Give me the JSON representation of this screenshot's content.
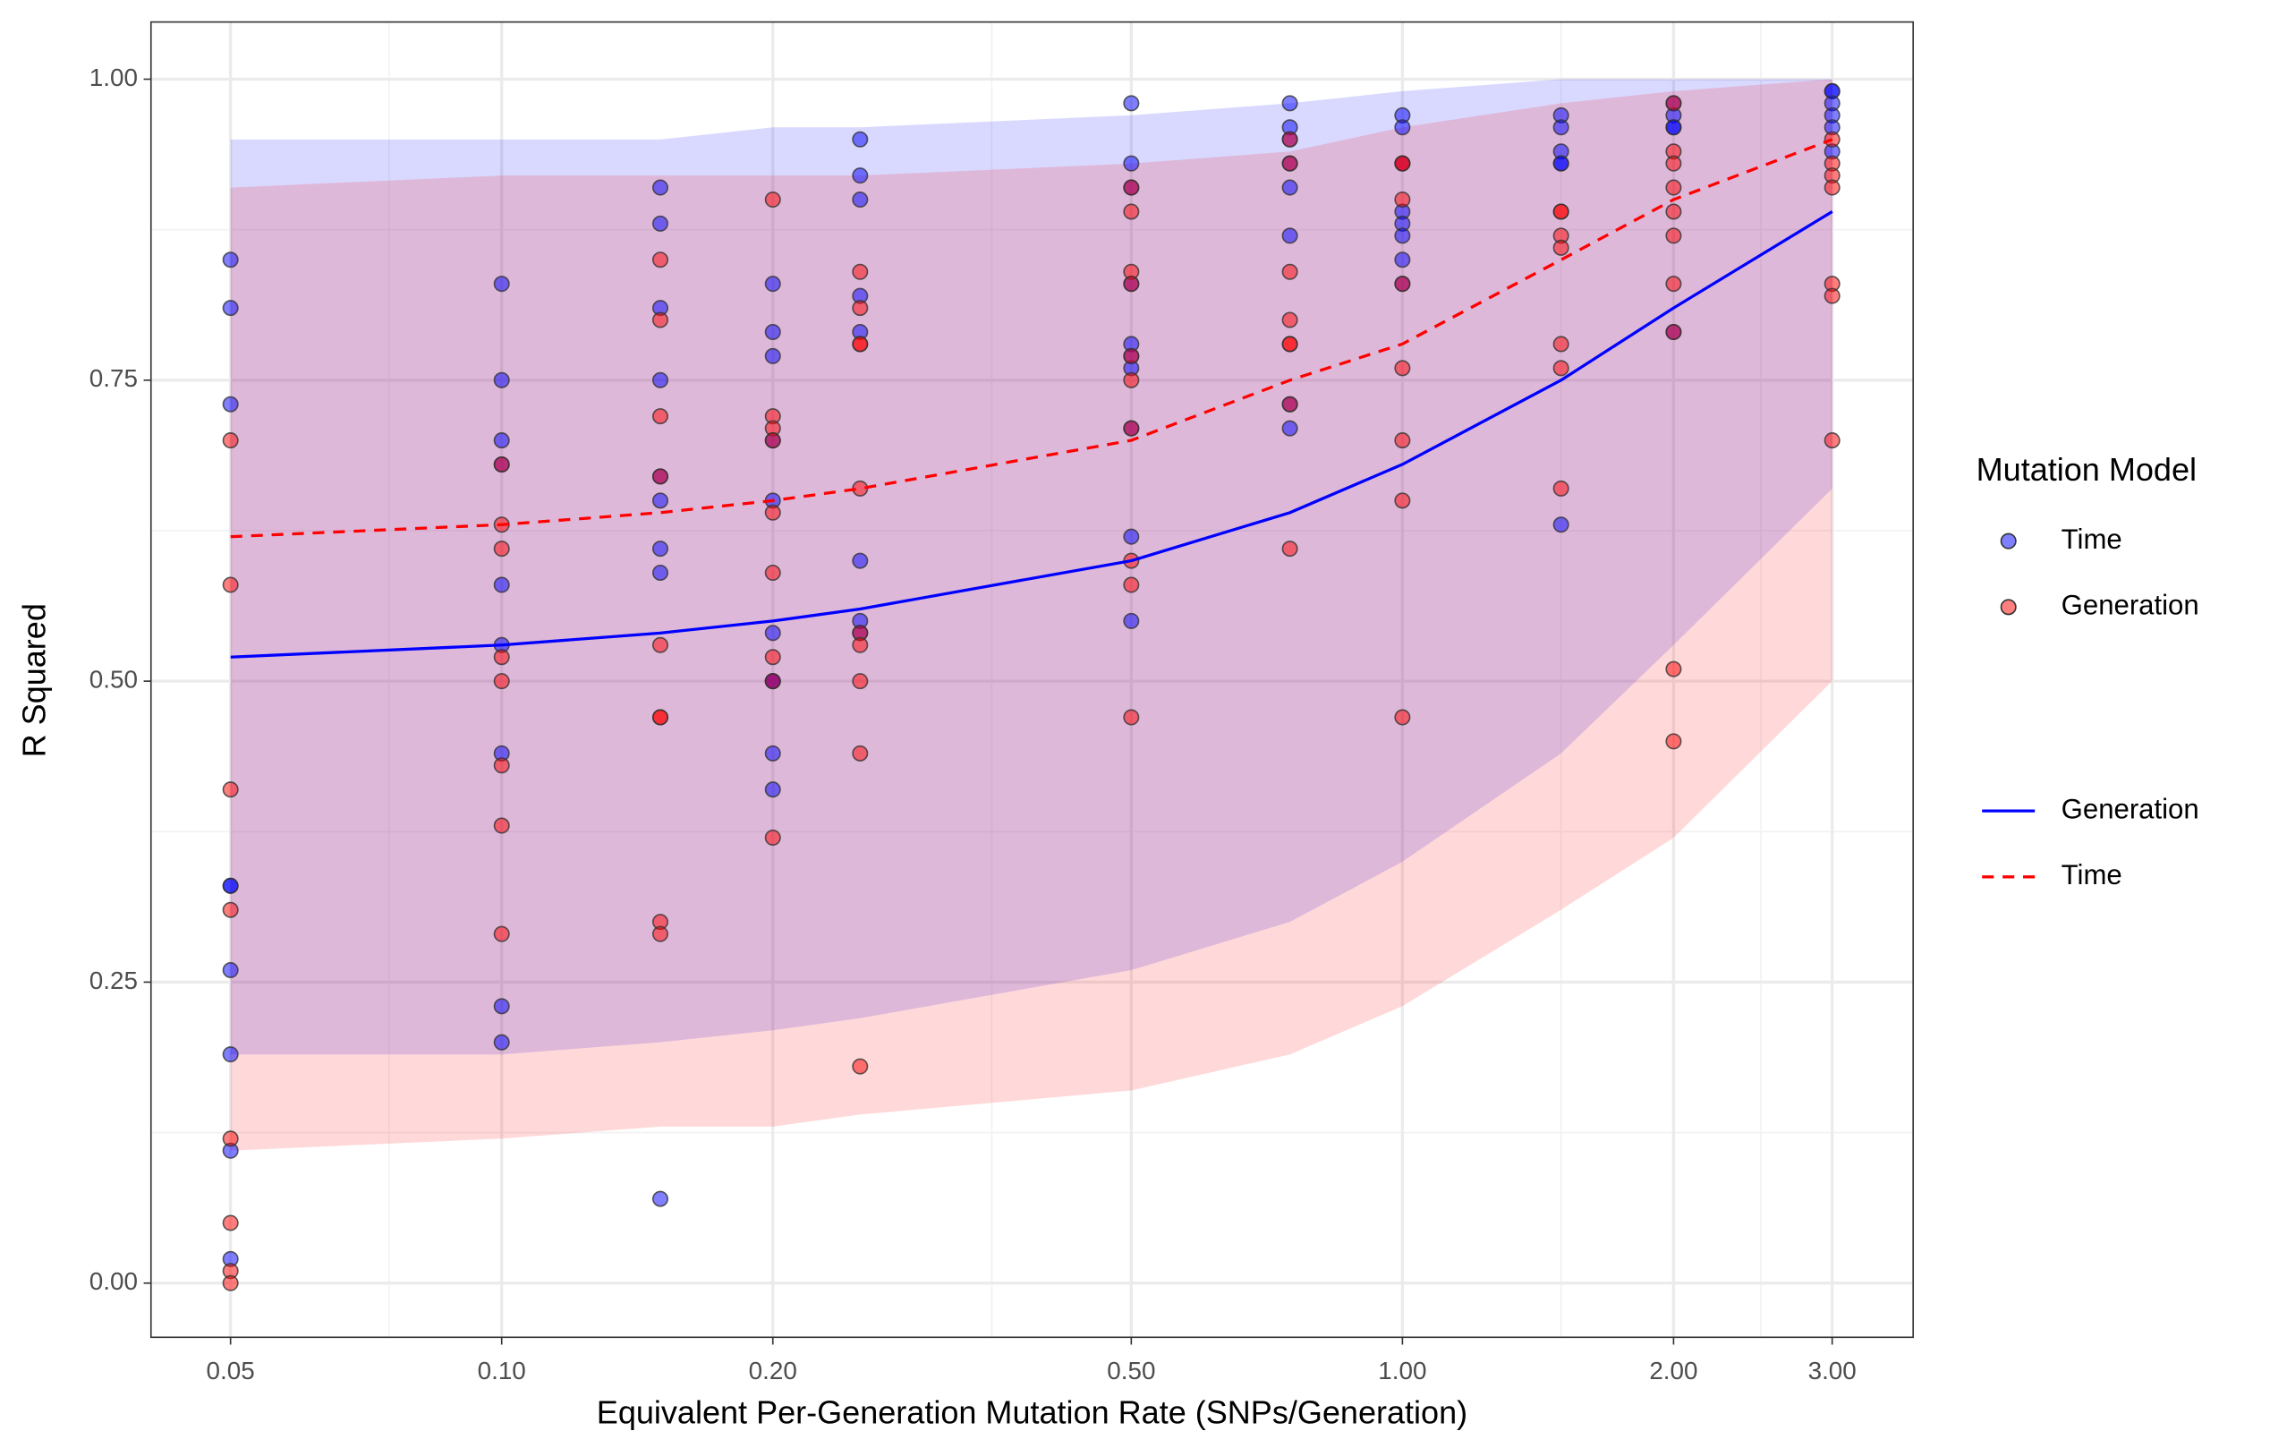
{
  "chart_data": {
    "type": "scatter",
    "x_label": "Equivalent Per-Generation Mutation Rate (SNPs/Generation)",
    "y_label": "R Squared",
    "x_log": true,
    "grid": true,
    "xlim": [
      0.0408,
      3.69
    ],
    "ylim": [
      -0.045,
      1.0475
    ],
    "xticks": [
      0.05,
      {
        "value": 0.1,
        "label": "0.10"
      },
      {
        "value": 0.2,
        "label": "0.20"
      },
      {
        "value": 0.5,
        "label": "0.50"
      },
      {
        "value": 1,
        "label": "1.00"
      },
      {
        "value": 2,
        "label": "2.00"
      },
      {
        "value": 3,
        "label": "3.00"
      }
    ],
    "yticks": [
      {
        "value": 0,
        "label": "0.00"
      },
      0.25,
      {
        "value": 0.5,
        "label": "0.50"
      },
      0.75,
      {
        "value": 1,
        "label": "1.00"
      }
    ],
    "x_minor_grid": [
      0.075,
      0.35,
      1.5,
      2.5
    ],
    "y_minor_grid": [
      0.125,
      0.375,
      0.625,
      0.875
    ],
    "legend_title": "Mutation Model",
    "legend_position": "right",
    "ribbons": [
      {
        "color": "#0000ff",
        "opacity": 0.15,
        "x": [
          0.05,
          0.1,
          0.15,
          0.2,
          0.25,
          0.5,
          0.75,
          1,
          1.5,
          2,
          3
        ],
        "upper": [
          0.95,
          0.95,
          0.95,
          0.96,
          0.96,
          0.97,
          0.98,
          0.99,
          1.0,
          1.0,
          1.0
        ],
        "lower": [
          0.19,
          0.19,
          0.2,
          0.21,
          0.22,
          0.26,
          0.3,
          0.35,
          0.44,
          0.53,
          0.66
        ]
      },
      {
        "color": "#ff0000",
        "opacity": 0.15,
        "x": [
          0.05,
          0.1,
          0.15,
          0.2,
          0.25,
          0.5,
          0.75,
          1,
          1.5,
          2,
          3
        ],
        "upper": [
          0.91,
          0.92,
          0.92,
          0.92,
          0.92,
          0.93,
          0.94,
          0.96,
          0.98,
          0.99,
          1.0
        ],
        "lower": [
          0.11,
          0.12,
          0.13,
          0.13,
          0.14,
          0.16,
          0.19,
          0.23,
          0.31,
          0.37,
          0.5
        ]
      }
    ],
    "series": [
      {
        "name": "Time",
        "color": "#0000ff",
        "x": [
          0.05,
          0.05,
          0.05,
          0.05,
          0.05,
          0.05,
          0.05,
          0.05,
          0.05,
          0.1,
          0.1,
          0.1,
          0.1,
          0.1,
          0.1,
          0.1,
          0.1,
          0.1,
          0.15,
          0.15,
          0.15,
          0.15,
          0.15,
          0.15,
          0.15,
          0.15,
          0.15,
          0.2,
          0.2,
          0.2,
          0.2,
          0.2,
          0.2,
          0.2,
          0.2,
          0.2,
          0.2,
          0.25,
          0.25,
          0.25,
          0.25,
          0.25,
          0.25,
          0.25,
          0.25,
          0.5,
          0.5,
          0.5,
          0.5,
          0.5,
          0.5,
          0.5,
          0.5,
          0.5,
          0.5,
          0.75,
          0.75,
          0.75,
          0.75,
          0.75,
          0.75,
          0.75,
          0.75,
          1,
          1,
          1,
          1,
          1,
          1,
          1,
          1,
          1.5,
          1.5,
          1.5,
          1.5,
          1.5,
          1.5,
          2,
          2,
          2,
          2,
          2,
          3,
          3,
          3,
          3,
          3,
          3
        ],
        "values": [
          0.85,
          0.81,
          0.73,
          0.33,
          0.33,
          0.26,
          0.19,
          0.11,
          0.02,
          0.83,
          0.75,
          0.7,
          0.68,
          0.58,
          0.53,
          0.44,
          0.23,
          0.2,
          0.91,
          0.88,
          0.81,
          0.75,
          0.67,
          0.65,
          0.61,
          0.59,
          0.07,
          0.83,
          0.79,
          0.77,
          0.7,
          0.65,
          0.54,
          0.5,
          0.5,
          0.44,
          0.41,
          0.95,
          0.92,
          0.9,
          0.82,
          0.79,
          0.6,
          0.55,
          0.54,
          0.98,
          0.93,
          0.91,
          0.83,
          0.78,
          0.77,
          0.76,
          0.71,
          0.62,
          0.55,
          0.98,
          0.96,
          0.95,
          0.93,
          0.91,
          0.87,
          0.73,
          0.71,
          0.97,
          0.96,
          0.93,
          0.89,
          0.88,
          0.87,
          0.85,
          0.83,
          0.97,
          0.96,
          0.94,
          0.93,
          0.93,
          0.63,
          0.98,
          0.97,
          0.96,
          0.96,
          0.79,
          0.99,
          0.99,
          0.98,
          0.97,
          0.96,
          0.94
        ]
      },
      {
        "name": "Generation",
        "color": "#ff0000",
        "x": [
          0.05,
          0.05,
          0.05,
          0.05,
          0.05,
          0.05,
          0.05,
          0.05,
          0.1,
          0.1,
          0.1,
          0.1,
          0.1,
          0.1,
          0.1,
          0.1,
          0.15,
          0.15,
          0.15,
          0.15,
          0.15,
          0.15,
          0.15,
          0.15,
          0.15,
          0.2,
          0.2,
          0.2,
          0.2,
          0.2,
          0.2,
          0.2,
          0.2,
          0.2,
          0.25,
          0.25,
          0.25,
          0.25,
          0.25,
          0.25,
          0.25,
          0.25,
          0.25,
          0.25,
          0.5,
          0.5,
          0.5,
          0.5,
          0.5,
          0.5,
          0.5,
          0.5,
          0.5,
          0.5,
          0.75,
          0.75,
          0.75,
          0.75,
          0.75,
          0.75,
          0.75,
          0.75,
          1,
          1,
          1,
          1,
          1,
          1,
          1,
          1,
          1.5,
          1.5,
          1.5,
          1.5,
          1.5,
          1.5,
          1.5,
          2,
          2,
          2,
          2,
          2,
          2,
          2,
          2,
          2,
          2,
          3,
          3,
          3,
          3,
          3,
          3,
          3
        ],
        "values": [
          0.7,
          0.58,
          0.41,
          0.31,
          0.12,
          0.05,
          0.01,
          0.0,
          0.68,
          0.63,
          0.61,
          0.52,
          0.5,
          0.43,
          0.38,
          0.29,
          0.85,
          0.8,
          0.72,
          0.67,
          0.53,
          0.47,
          0.47,
          0.3,
          0.29,
          0.9,
          0.72,
          0.71,
          0.7,
          0.64,
          0.59,
          0.52,
          0.5,
          0.37,
          0.84,
          0.81,
          0.78,
          0.78,
          0.66,
          0.54,
          0.53,
          0.5,
          0.44,
          0.18,
          0.91,
          0.89,
          0.84,
          0.83,
          0.77,
          0.75,
          0.71,
          0.6,
          0.58,
          0.47,
          0.95,
          0.93,
          0.84,
          0.8,
          0.78,
          0.78,
          0.73,
          0.61,
          0.93,
          0.93,
          0.9,
          0.83,
          0.76,
          0.7,
          0.65,
          0.47,
          0.89,
          0.89,
          0.87,
          0.86,
          0.78,
          0.76,
          0.66,
          0.98,
          0.94,
          0.93,
          0.91,
          0.89,
          0.87,
          0.83,
          0.79,
          0.51,
          0.45,
          0.95,
          0.93,
          0.92,
          0.91,
          0.83,
          0.82,
          0.7
        ]
      }
    ],
    "lines": [
      {
        "name": "Generation",
        "color": "#0000ff",
        "linetype": "solid",
        "x": [
          0.05,
          0.1,
          0.15,
          0.2,
          0.25,
          0.5,
          0.75,
          1,
          1.5,
          2,
          3
        ],
        "values": [
          0.52,
          0.53,
          0.54,
          0.55,
          0.56,
          0.6,
          0.64,
          0.68,
          0.75,
          0.81,
          0.89
        ]
      },
      {
        "name": "Time",
        "color": "#ff0000",
        "linetype": "dashed",
        "x": [
          0.05,
          0.1,
          0.15,
          0.2,
          0.25,
          0.5,
          0.75,
          1,
          1.5,
          2,
          3
        ],
        "values": [
          0.62,
          0.63,
          0.64,
          0.65,
          0.66,
          0.7,
          0.75,
          0.78,
          0.85,
          0.9,
          0.95
        ]
      }
    ]
  }
}
